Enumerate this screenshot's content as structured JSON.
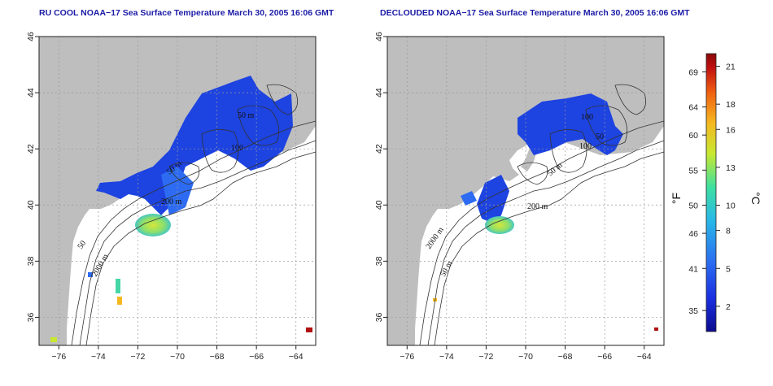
{
  "panels": [
    {
      "title": "RU COOL NOAA−17 Sea Surface Temperature March 30, 2005 16:06 GMT",
      "contour_labels": [
        "50 m",
        "200 m",
        "100",
        "50 m",
        "2000 m",
        "50"
      ]
    },
    {
      "title": "DECLOUDED NOAA−17 Sea Surface Temperature March 30, 2005 16:06 GMT",
      "contour_labels": [
        "50 m",
        "200 m",
        "100",
        "100",
        "50 m",
        "2000 m",
        "50"
      ]
    }
  ],
  "axes": {
    "lon_ticks": [
      "−76",
      "−74",
      "−72",
      "−70",
      "−68",
      "−66",
      "−64"
    ],
    "lat_ticks": [
      "36",
      "38",
      "40",
      "42",
      "44",
      "46"
    ]
  },
  "colorbar": {
    "fahrenheit_ticks": [
      "69",
      "64",
      "60",
      "55",
      "50",
      "46",
      "41",
      "35"
    ],
    "celsius_ticks": [
      "21",
      "18",
      "16",
      "13",
      "10",
      "8",
      "5",
      "2"
    ],
    "fahrenheit_unit": "°F",
    "celsius_unit": "°C",
    "colors": [
      "#0b0b8f",
      "#1a2fe0",
      "#2b6df0",
      "#28b8e8",
      "#3ee0a0",
      "#c8e830",
      "#f5b820",
      "#f06010",
      "#c01010",
      "#8a0808"
    ]
  },
  "colors": {
    "land": "#bebebe",
    "ocean": "#ffffff",
    "sst_cold": "#1d43e0",
    "sst_cool": "#2d6cf2",
    "sst_mid": "#46d6a6",
    "sst_warm": "#d4e63a",
    "sst_hot": "#b01010",
    "grid": "#9a9a9a",
    "title": "#1a1aa6"
  }
}
